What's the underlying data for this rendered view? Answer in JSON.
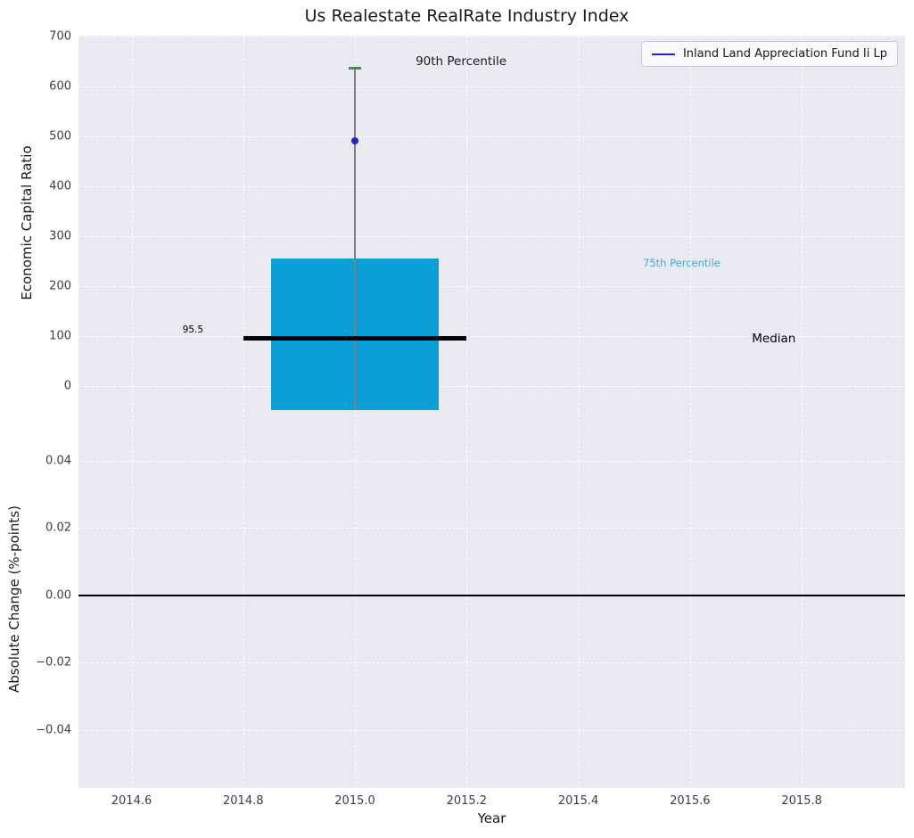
{
  "chart_data": {
    "type": "box",
    "title": "Us Realestate RealRate Industry Index",
    "xlabel": "Year",
    "legend": {
      "label": "Inland Land Appreciation Fund Ii Lp",
      "line_color": "#2222cc",
      "position": "top-right"
    },
    "xlim": [
      2014.505,
      2015.985
    ],
    "x_ticks": [
      2014.6,
      2014.8,
      2015.0,
      2015.2,
      2015.4,
      2015.6,
      2015.8
    ],
    "x_tick_labels": [
      "2014.6",
      "2014.8",
      "2015.0",
      "2015.2",
      "2015.4",
      "2015.6",
      "2015.8"
    ],
    "style": {
      "axes_background": "#eaeaf2",
      "grid_color": "#ffffff",
      "grid_style": "dashed",
      "tick_color": "#3d3d47"
    },
    "top_panel": {
      "ylabel": "Economic Capital Ratio",
      "ylim": [
        -48,
        702
      ],
      "y_ticks": [
        0,
        100,
        200,
        300,
        400,
        500,
        600,
        700
      ],
      "y_tick_labels": [
        "0",
        "100",
        "200",
        "300",
        "400",
        "500",
        "600",
        "700"
      ],
      "box": {
        "x": 2015.0,
        "bar_width": 0.3,
        "bar_bottom": -48,
        "p75": 255,
        "p90": 637,
        "median": 95.5,
        "median_width": 0.4,
        "bar_color": "#0a9fd6",
        "whisker_color": "#808080",
        "cap_color": "#2ca02c",
        "median_color": "#000000"
      },
      "fund_point": {
        "x": 2015.0,
        "y": 492,
        "color": "#2222cc"
      },
      "annotations": [
        {
          "text": "90th Percentile",
          "x": 2015.19,
          "y": 650,
          "color": "#1a1a1a",
          "size": 13.5
        },
        {
          "text": "75th Percentile",
          "x": 2015.585,
          "y": 246,
          "color": "#36ace0",
          "size": 11.5
        },
        {
          "text": "Median",
          "x": 2015.75,
          "y": 95.5,
          "color": "#000000",
          "size": 13.5
        },
        {
          "text": "95.5",
          "x": 2014.71,
          "y": 112,
          "color": "#000000",
          "size": 10.5
        }
      ]
    },
    "bottom_panel": {
      "ylabel": "Absolute Change (%-points)",
      "ylim": [
        -0.0573,
        0.0551
      ],
      "y_ticks": [
        0.04,
        0.02,
        0.0,
        -0.02,
        -0.04
      ],
      "y_tick_labels": [
        "0.04",
        "0.02",
        "0.00",
        "−0.02",
        "−0.04"
      ],
      "zero_line_y": 0.0,
      "zero_line_color": "#000000"
    }
  }
}
